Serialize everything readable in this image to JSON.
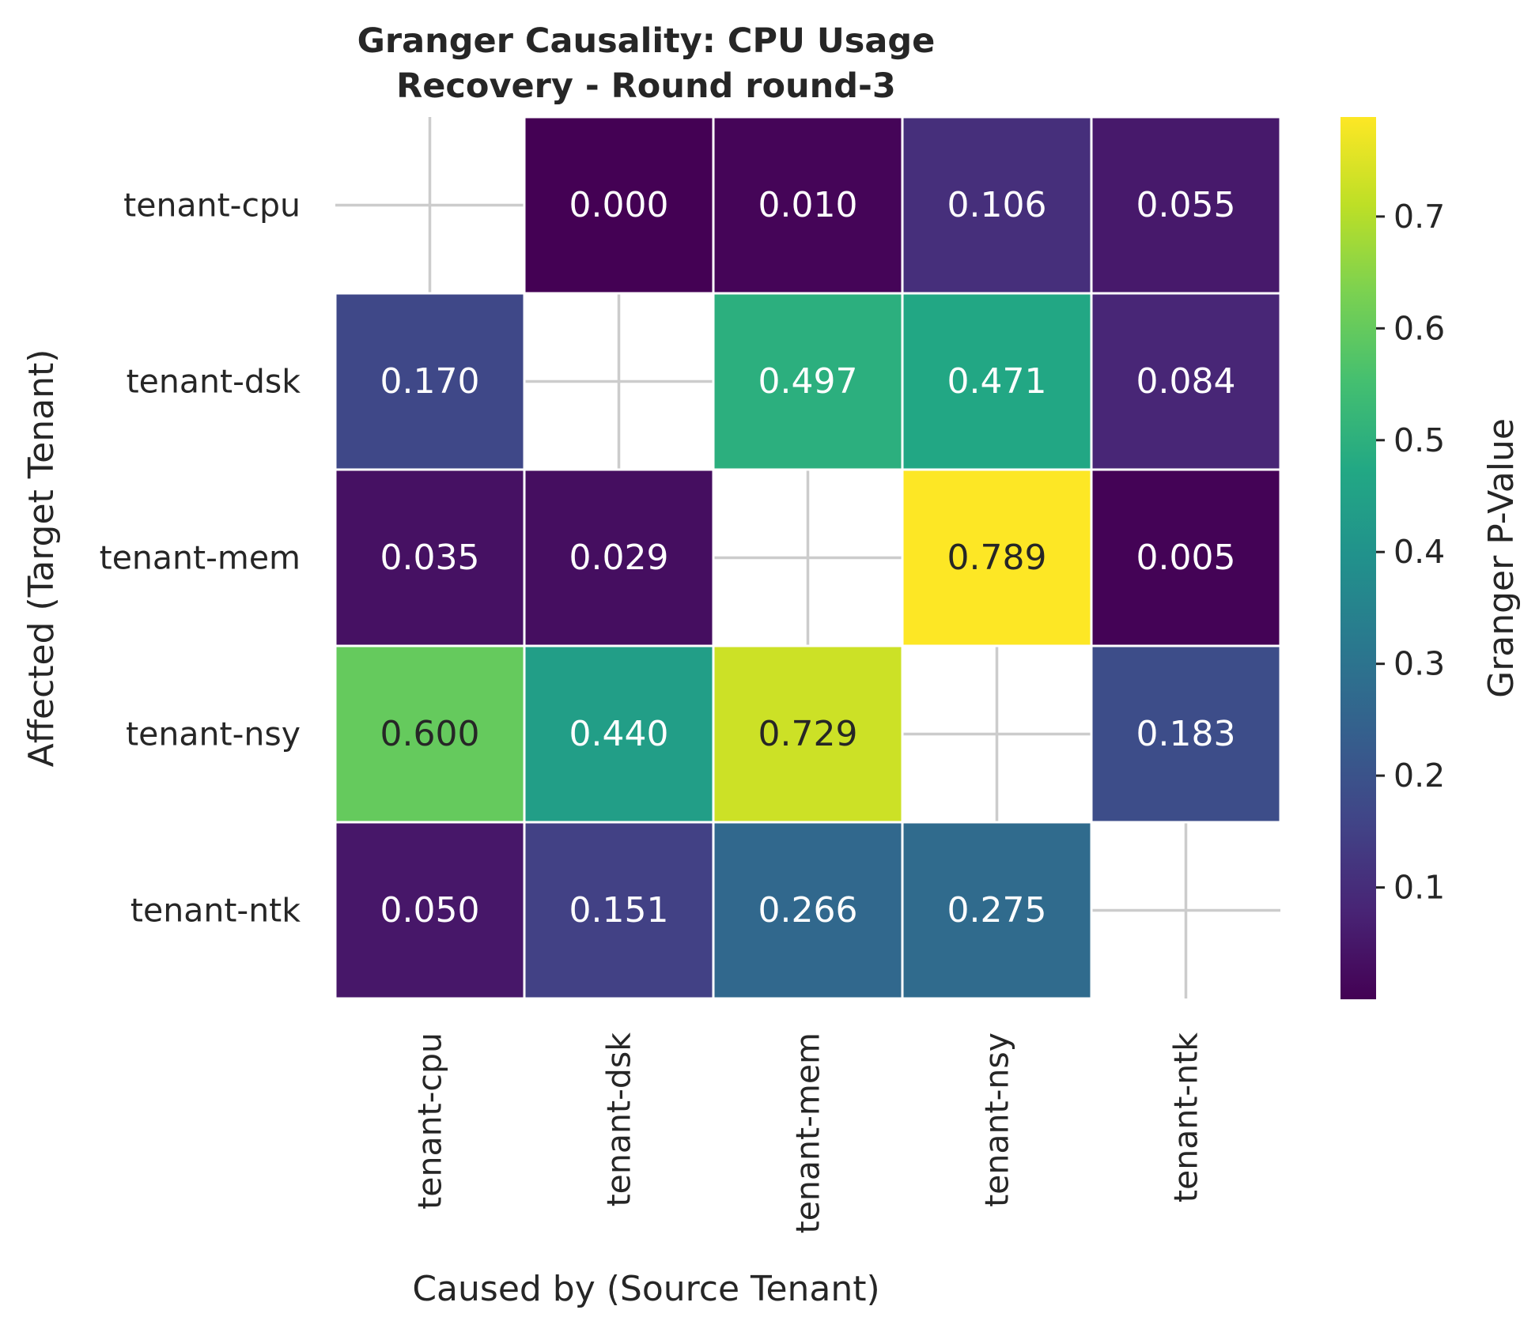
{
  "chart_data": {
    "type": "heatmap",
    "title": [
      "Granger Causality: CPU Usage",
      "Recovery - Round round-3"
    ],
    "xlabel": "Caused by (Source Tenant)",
    "ylabel": "Affected (Target Tenant)",
    "x_categories": [
      "tenant-cpu",
      "tenant-dsk",
      "tenant-mem",
      "tenant-nsy",
      "tenant-ntk"
    ],
    "y_categories": [
      "tenant-cpu",
      "tenant-dsk",
      "tenant-mem",
      "tenant-nsy",
      "tenant-ntk"
    ],
    "values": [
      [
        null,
        0.0,
        0.01,
        0.106,
        0.055
      ],
      [
        0.17,
        null,
        0.497,
        0.471,
        0.084
      ],
      [
        0.035,
        0.029,
        null,
        0.789,
        0.005
      ],
      [
        0.6,
        0.44,
        0.729,
        null,
        0.183
      ],
      [
        0.05,
        0.151,
        0.266,
        0.275,
        null
      ]
    ],
    "value_labels": [
      [
        "",
        "0.000",
        "0.010",
        "0.106",
        "0.055"
      ],
      [
        "0.170",
        "",
        "0.497",
        "0.471",
        "0.084"
      ],
      [
        "0.035",
        "0.029",
        "",
        "0.789",
        "0.005"
      ],
      [
        "0.600",
        "0.440",
        "0.729",
        "",
        "0.183"
      ],
      [
        "0.050",
        "0.151",
        "0.266",
        "0.275",
        ""
      ]
    ],
    "colormap": "viridis",
    "colorbar": {
      "label": "Granger P-Value",
      "range": [
        0.0,
        0.789
      ],
      "ticks": [
        0.1,
        0.2,
        0.3,
        0.4,
        0.5,
        0.6,
        0.7
      ],
      "tick_labels": [
        "0.1",
        "0.2",
        "0.3",
        "0.4",
        "0.5",
        "0.6",
        "0.7"
      ]
    },
    "diagonal": "masked",
    "grid": true
  }
}
